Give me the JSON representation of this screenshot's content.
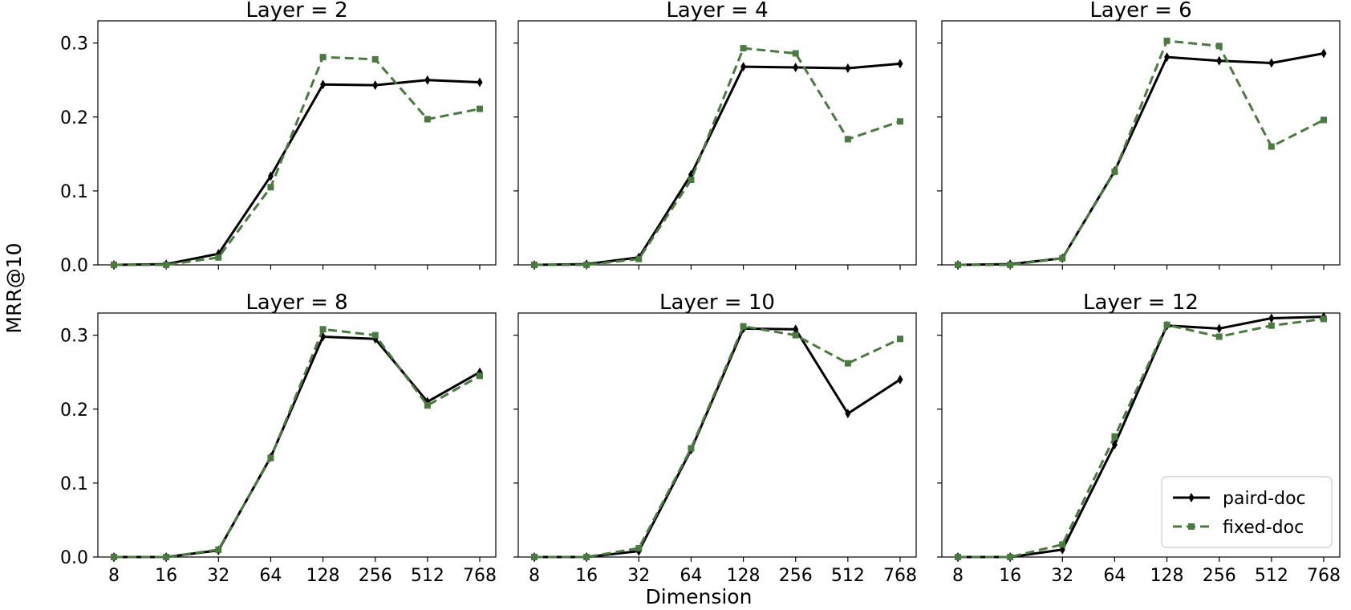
{
  "figure": {
    "ylabel": "MRR@10",
    "xlabel": "Dimension"
  },
  "colors": {
    "paird": "#000000",
    "fixed": "#4a7a3f"
  },
  "legend": {
    "location": "lower-right",
    "panel": 5,
    "items": [
      "paird-doc",
      "fixed-doc"
    ]
  },
  "chart_data": [
    {
      "type": "line",
      "title": "Layer = 2",
      "categories": [
        "8",
        "16",
        "32",
        "64",
        "128",
        "256",
        "512",
        "768"
      ],
      "ylim": [
        0,
        0.33
      ],
      "yticks": [
        "0.0",
        "0.1",
        "0.2",
        "0.3"
      ],
      "series": [
        {
          "name": "paird-doc",
          "values": [
            0.0,
            0.001,
            0.015,
            0.12,
            0.244,
            0.243,
            0.25,
            0.247
          ]
        },
        {
          "name": "fixed-doc",
          "values": [
            0.0,
            0.0,
            0.01,
            0.105,
            0.281,
            0.278,
            0.197,
            0.211
          ]
        }
      ]
    },
    {
      "type": "line",
      "title": "Layer = 4",
      "categories": [
        "8",
        "16",
        "32",
        "64",
        "128",
        "256",
        "512",
        "768"
      ],
      "ylim": [
        0,
        0.33
      ],
      "yticks": [
        "0.0",
        "0.1",
        "0.2",
        "0.3"
      ],
      "series": [
        {
          "name": "paird-doc",
          "values": [
            0.0,
            0.001,
            0.01,
            0.122,
            0.268,
            0.267,
            0.266,
            0.272
          ]
        },
        {
          "name": "fixed-doc",
          "values": [
            0.0,
            0.0,
            0.008,
            0.115,
            0.293,
            0.286,
            0.17,
            0.194
          ]
        }
      ]
    },
    {
      "type": "line",
      "title": "Layer = 6",
      "categories": [
        "8",
        "16",
        "32",
        "64",
        "128",
        "256",
        "512",
        "768"
      ],
      "ylim": [
        0,
        0.33
      ],
      "yticks": [
        "0.0",
        "0.1",
        "0.2",
        "0.3"
      ],
      "series": [
        {
          "name": "paird-doc",
          "values": [
            0.0,
            0.001,
            0.009,
            0.127,
            0.281,
            0.276,
            0.273,
            0.286
          ]
        },
        {
          "name": "fixed-doc",
          "values": [
            0.0,
            0.0,
            0.009,
            0.126,
            0.303,
            0.296,
            0.16,
            0.196
          ]
        }
      ]
    },
    {
      "type": "line",
      "title": "Layer = 8",
      "categories": [
        "8",
        "16",
        "32",
        "64",
        "128",
        "256",
        "512",
        "768"
      ],
      "ylim": [
        0,
        0.33
      ],
      "yticks": [
        "0.0",
        "0.1",
        "0.2",
        "0.3"
      ],
      "series": [
        {
          "name": "paird-doc",
          "values": [
            0.0,
            0.0,
            0.009,
            0.135,
            0.298,
            0.295,
            0.21,
            0.25
          ]
        },
        {
          "name": "fixed-doc",
          "values": [
            0.0,
            0.0,
            0.01,
            0.134,
            0.308,
            0.3,
            0.205,
            0.245
          ]
        }
      ]
    },
    {
      "type": "line",
      "title": "Layer = 10",
      "categories": [
        "8",
        "16",
        "32",
        "64",
        "128",
        "256",
        "512",
        "768"
      ],
      "ylim": [
        0,
        0.33
      ],
      "yticks": [
        "0.0",
        "0.1",
        "0.2",
        "0.3"
      ],
      "series": [
        {
          "name": "paird-doc",
          "values": [
            0.0,
            0.0,
            0.008,
            0.145,
            0.309,
            0.308,
            0.194,
            0.24
          ]
        },
        {
          "name": "fixed-doc",
          "values": [
            0.0,
            0.0,
            0.012,
            0.147,
            0.312,
            0.3,
            0.262,
            0.295
          ]
        }
      ]
    },
    {
      "type": "line",
      "title": "Layer = 12",
      "categories": [
        "8",
        "16",
        "32",
        "64",
        "128",
        "256",
        "512",
        "768"
      ],
      "ylim": [
        0,
        0.33
      ],
      "yticks": [
        "0.0",
        "0.1",
        "0.2",
        "0.3"
      ],
      "series": [
        {
          "name": "paird-doc",
          "values": [
            0.0,
            0.0,
            0.01,
            0.152,
            0.313,
            0.309,
            0.323,
            0.325
          ]
        },
        {
          "name": "fixed-doc",
          "values": [
            0.0,
            0.0,
            0.017,
            0.163,
            0.314,
            0.298,
            0.313,
            0.322
          ]
        }
      ]
    }
  ]
}
